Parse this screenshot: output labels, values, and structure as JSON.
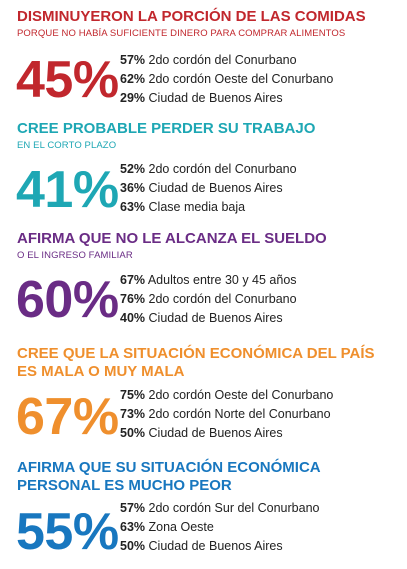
{
  "colors": {
    "red": "#c1272d",
    "teal": "#1ea7b4",
    "purple": "#6a2c85",
    "orange": "#ef8f2d",
    "blue": "#1877bf",
    "text": "#222222"
  },
  "chart_data": {
    "type": "table",
    "blocks": [
      {
        "title": "DISMINUYERON LA PORCIÓN DE LAS COMIDAS",
        "subtitle": "PORQUE NO HABÍA SUFICIENTE DINERO PARA COMPRAR ALIMENTOS",
        "value": "45%",
        "rows": [
          {
            "pct": "57%",
            "label": "2do cordón del Conurbano"
          },
          {
            "pct": "62%",
            "label": "2do cordón Oeste del Conurbano"
          },
          {
            "pct": "29%",
            "label": "Ciudad de Buenos Aires"
          }
        ]
      },
      {
        "title": "CREE PROBABLE PERDER SU TRABAJO",
        "subtitle": "EN EL CORTO PLAZO",
        "value": "41%",
        "rows": [
          {
            "pct": "52%",
            "label": "2do cordón del Conurbano"
          },
          {
            "pct": "36%",
            "label": "Ciudad de Buenos Aires"
          },
          {
            "pct": "63%",
            "label": "Clase media baja"
          }
        ]
      },
      {
        "title": "AFIRMA QUE NO LE ALCANZA EL SUELDO",
        "subtitle": "O EL INGRESO FAMILIAR",
        "value": "60%",
        "rows": [
          {
            "pct": "67%",
            "label": "Adultos entre 30 y 45 años"
          },
          {
            "pct": "76%",
            "label": "2do cordón del Conurbano"
          },
          {
            "pct": "40%",
            "label": "Ciudad de Buenos Aires"
          }
        ]
      },
      {
        "title": "CREE QUE LA SITUACIÓN ECONÓMICA DEL PAÍS",
        "title2": "ES MALA O MUY MALA",
        "value": "67%",
        "rows": [
          {
            "pct": "75%",
            "label": "2do cordón Oeste del Conurbano"
          },
          {
            "pct": "73%",
            "label": "2do cordón Norte  del Conurbano"
          },
          {
            "pct": "50%",
            "label": "Ciudad de Buenos Aires"
          }
        ]
      },
      {
        "title": "AFIRMA QUE SU SITUACIÓN ECONÓMICA",
        "title2": "PERSONAL ES MUCHO PEOR",
        "value": "55%",
        "rows": [
          {
            "pct": "57%",
            "label": "2do cordón Sur  del Conurbano"
          },
          {
            "pct": "63%",
            "label": "Zona Oeste"
          },
          {
            "pct": "50%",
            "label": "Ciudad de Buenos Aires"
          }
        ]
      }
    ]
  }
}
